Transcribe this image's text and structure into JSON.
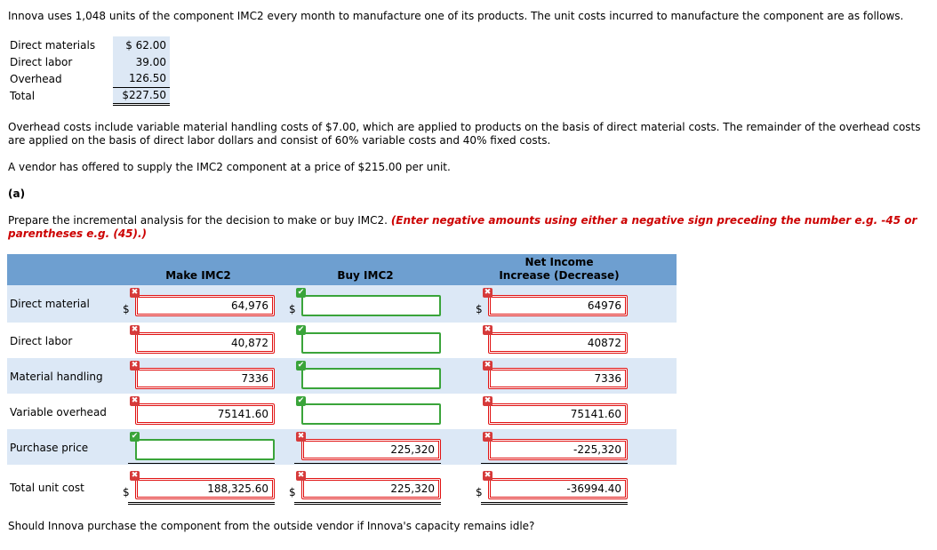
{
  "intro": "Innova uses 1,048 units of the component IMC2 every month to manufacture one of its products. The unit costs incurred to manufacture the component are as follows.",
  "costs": [
    {
      "label": "Direct materials",
      "value": "$ 62.00"
    },
    {
      "label": "Direct labor",
      "value": "39.00"
    },
    {
      "label": "Overhead",
      "value": "126.50"
    },
    {
      "label": "Total",
      "value": "$227.50"
    }
  ],
  "overhead_text": "Overhead costs include variable material handling costs of $7.00, which are applied to products on the basis of direct material costs. The remainder of the overhead costs are applied on the basis of direct labor dollars and consist of 60% variable costs and 40% fixed costs.",
  "vendor_text": "A vendor has offered to supply the IMC2 component at a price of $215.00 per unit.",
  "part_label": "(a)",
  "prepare_text": "Prepare the incremental analysis for the decision to make or buy IMC2.",
  "instruction_text": "(Enter negative amounts using either a negative sign preceding the number e.g. -45 or parentheses e.g. (45).)",
  "grid": {
    "headers": {
      "make": "Make IMC2",
      "buy": "Buy IMC2",
      "net_line1": "Net Income",
      "net_line2": "Increase (Decrease)"
    },
    "currency": "$",
    "rows": [
      {
        "label": "Direct material",
        "make": "64,976",
        "make_ok": false,
        "buy": "",
        "buy_ok": true,
        "net": "64976",
        "net_ok": false
      },
      {
        "label": "Direct labor",
        "make": "40,872",
        "make_ok": false,
        "buy": "",
        "buy_ok": true,
        "net": "40872",
        "net_ok": false
      },
      {
        "label": "Material handling",
        "make": "7336",
        "make_ok": false,
        "buy": "",
        "buy_ok": true,
        "net": "7336",
        "net_ok": false
      },
      {
        "label": "Variable overhead",
        "make": "75141.60",
        "make_ok": false,
        "buy": "",
        "buy_ok": true,
        "net": "75141.60",
        "net_ok": false
      },
      {
        "label": "Purchase price",
        "make": "",
        "make_ok": true,
        "buy": "225,320",
        "buy_ok": false,
        "net": "-225,320",
        "net_ok": false
      },
      {
        "label": "Total unit cost",
        "make": "188,325.60",
        "make_ok": false,
        "buy": "225,320",
        "buy_ok": false,
        "net": "-36994.40",
        "net_ok": false
      }
    ]
  },
  "question_text": "Should Innova purchase the component from the outside vendor if Innova's capacity remains idle?"
}
